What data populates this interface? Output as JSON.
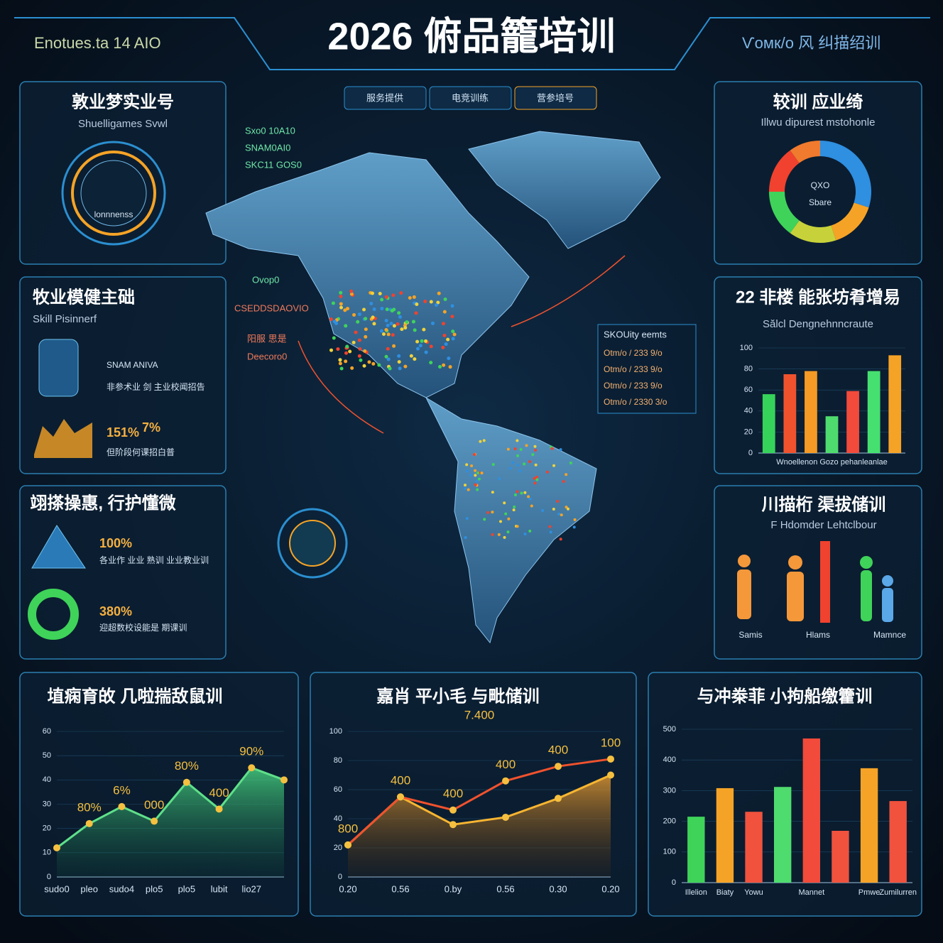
{
  "header": {
    "brand": "Enotues.ta 14 AIO",
    "title": "2026 俯品籠培训",
    "right": "Ѵoмк/o 风 纠描绍训",
    "tabs": [
      "服务提供",
      "电竞训练",
      "营参培号"
    ]
  },
  "panels": [
    {
      "title": "敦业梦实业号",
      "subtitle": "Shuelligames Svwl",
      "texts": [
        "lonnnenss"
      ]
    },
    {
      "title": "牧业模健主础",
      "subtitle": "Skill Pisinnerf",
      "texts": [
        "SNAM ANIVA",
        "非参术业 剑 主业校闻招告",
        "151%",
        "7%",
        "但阶段何课招白普"
      ]
    },
    {
      "title": "翊搽操惠, 行护懂微",
      "texts": [
        "100%",
        "各业作 业业 熟训 业业教业训",
        "380%",
        "迎超数校设能是 期课训"
      ]
    },
    {
      "title": "较训 应业绮",
      "subtitle": "Illwu dipurest mstohonle",
      "texts": [
        "QXO",
        "Sbare"
      ]
    },
    {
      "title": "川描桁 渠拔储训",
      "subtitle": "F Hdomder Lehtclbour",
      "texts": [
        "Samis",
        "Hlams",
        "Mamnce"
      ]
    }
  ],
  "map": {
    "labels": [
      "Sxo0 10A10",
      "SNAM0AI0",
      "SKC11 GOS0",
      "Ovop0",
      "CSEDDSDAOVIO",
      "阳服 思是",
      "Deecoro0"
    ],
    "callout": {
      "title": "SKOUity eemts",
      "rows": [
        "Otm/o / 233 9/o",
        "Otm/o / 233 9/o",
        "Otm/o / 233 9/o",
        "Otm/o / 2330 3/o"
      ]
    }
  },
  "chart_data": [
    {
      "type": "bar",
      "title": "22 非楼 能张坊肴增易",
      "subtitle": "Sălcl Dengnehnncraute",
      "categories": [
        null,
        null,
        null,
        null,
        null,
        null,
        null
      ],
      "series": [
        {
          "values": [
            56,
            75,
            78,
            35,
            59,
            78,
            93
          ],
          "colors": [
            "#36d35a",
            "#f0522e",
            "#f59a24",
            "#4fdc6e",
            "#f24a3b",
            "#46e070",
            "#f5a326"
          ]
        }
      ],
      "x_label": "Wnoellenon   Gozo   pehanleanlae",
      "ylim": [
        0,
        100
      ],
      "yticks": [
        0,
        20,
        40,
        60,
        80,
        100
      ]
    },
    {
      "type": "line",
      "title": "埴痫育敀 几啦揣敌鼠训",
      "categories": [
        "sudo0",
        "pleo",
        "sudo4",
        "plo5",
        "plo5",
        "lubit",
        "lio27",
        null
      ],
      "series": [
        {
          "values": [
            12,
            22,
            29,
            23,
            39,
            28,
            45,
            40
          ],
          "color": "#5fe08a"
        }
      ],
      "annotations": [
        "80%",
        "6%",
        "000",
        "80%",
        "400",
        "90%"
      ],
      "ylim": [
        0,
        60
      ],
      "yticks": [
        0,
        10,
        20,
        30,
        40,
        50,
        60
      ]
    },
    {
      "type": "line",
      "title": "嘉肖 平小毛 与毗储训",
      "categories": [
        "0.20",
        "0.56",
        "0.by",
        "0.56",
        "0.30",
        "0.20"
      ],
      "series": [
        {
          "values": [
            22,
            55,
            36,
            41,
            54,
            70
          ],
          "color": "#f7b531"
        },
        {
          "values": [
            22,
            55,
            46,
            66,
            76,
            81
          ],
          "color": "#f0522e"
        }
      ],
      "annotations": [
        "7.400",
        "800",
        "400",
        "400",
        "400",
        "400",
        "100"
      ],
      "ylim": [
        0,
        100
      ],
      "yticks": [
        0,
        20,
        40,
        60,
        80,
        100
      ]
    },
    {
      "type": "bar",
      "title": "与冲桊菲 小拘船缴籗训",
      "categories": [
        "Illelion",
        "Biaty",
        "Yowu",
        null,
        "Mannet",
        null,
        "Pmwe",
        "Zumilurren"
      ],
      "series": [
        {
          "values": [
            215,
            308,
            231,
            312,
            470,
            169,
            373,
            266
          ],
          "colors": [
            "#3fd35a",
            "#f5a326",
            "#f0523e",
            "#4fdc6e",
            "#f24a3b",
            "#f0523e",
            "#f5a326",
            "#f0523e"
          ]
        }
      ],
      "ylim": [
        0,
        500
      ],
      "yticks": [
        0,
        100,
        200,
        300,
        400,
        500
      ]
    },
    {
      "type": "pie",
      "values": [
        30,
        15,
        15,
        15,
        15,
        10
      ],
      "colors": [
        "#2f8fe0",
        "#f5a326",
        "#c7d23a",
        "#3fd35a",
        "#f0422e",
        "#f07a2e"
      ]
    }
  ]
}
